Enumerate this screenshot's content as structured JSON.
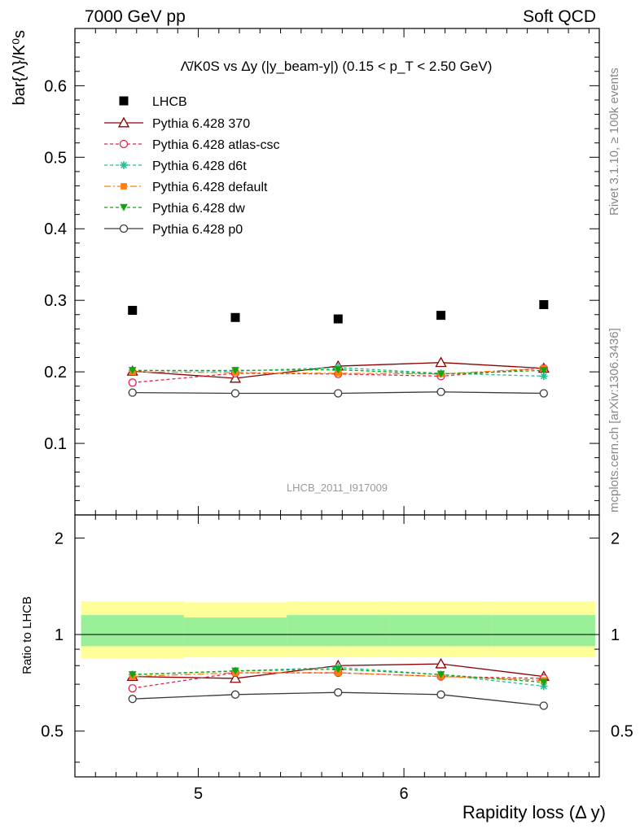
{
  "header": {
    "left": "7000 GeV pp",
    "right": "Soft QCD"
  },
  "side_text": {
    "top": "Rivet 3.1.10, ≥ 100k events",
    "bottom": "mcplots.cern.ch [arXiv:1306.3436]"
  },
  "chart_data": {
    "type": "scatter",
    "title": "Λ̄/K0S vs Δy (|y_beam-y|) (0.15 < p_T < 2.50 GeV)",
    "ylabel": "bar{Λ}/K⁰s",
    "xlabel": "Rapidity loss (Δ y)",
    "watermark": "LHCB_2011_I917009",
    "ratio_ylabel": "Ratio to LHCB",
    "xlim": [
      4.4,
      6.95
    ],
    "ylim": [
      0.0,
      0.68
    ],
    "ratio_ylim": [
      0.36,
      2.36
    ],
    "xticks": [
      5,
      6
    ],
    "yticks": [
      0.1,
      0.2,
      0.3,
      0.4,
      0.5,
      0.6
    ],
    "ratio_yticks": [
      0.5,
      1,
      2
    ],
    "x": [
      4.68,
      5.18,
      5.68,
      6.18,
      6.68
    ],
    "bin_edges": [
      4.43,
      4.93,
      5.43,
      5.93,
      6.43,
      6.93
    ],
    "data": {
      "name": "LHCB",
      "values": [
        0.286,
        0.276,
        0.274,
        0.279,
        0.294
      ]
    },
    "band_inner": {
      "lo": [
        0.92,
        0.92,
        0.92,
        0.92,
        0.92
      ],
      "hi": [
        1.15,
        1.13,
        1.15,
        1.15,
        1.15
      ]
    },
    "band_outer": {
      "lo": [
        0.84,
        0.85,
        0.85,
        0.85,
        0.85
      ],
      "hi": [
        1.27,
        1.26,
        1.27,
        1.27,
        1.27
      ]
    },
    "series": [
      {
        "name": "Pythia 6.428 370",
        "color": "#8b0000",
        "dash": "",
        "marker": "triangle-open",
        "values": [
          0.201,
          0.191,
          0.208,
          0.213,
          0.205
        ],
        "ratio": [
          0.74,
          0.73,
          0.8,
          0.81,
          0.74
        ]
      },
      {
        "name": "Pythia 6.428 atlas-csc",
        "color": "#e8234a",
        "dash": "4,3",
        "marker": "circle-open",
        "values": [
          0.185,
          0.198,
          0.197,
          0.194,
          0.205
        ],
        "ratio": [
          0.68,
          0.76,
          0.76,
          0.74,
          0.73
        ]
      },
      {
        "name": "Pythia 6.428 d6t",
        "color": "#1fbf96",
        "dash": "4,3",
        "marker": "star",
        "values": [
          0.202,
          0.201,
          0.206,
          0.198,
          0.194
        ],
        "ratio": [
          0.75,
          0.77,
          0.79,
          0.75,
          0.69
        ]
      },
      {
        "name": "Pythia 6.428 default",
        "color": "#ff7f0e",
        "dash": "8,3,2,3",
        "marker": "square",
        "values": [
          0.2,
          0.199,
          0.198,
          0.197,
          0.205
        ],
        "ratio": [
          0.74,
          0.76,
          0.76,
          0.74,
          0.72
        ]
      },
      {
        "name": "Pythia 6.428 dw",
        "color": "#11a611",
        "dash": "4,3",
        "marker": "triangle-down",
        "values": [
          0.202,
          0.202,
          0.203,
          0.197,
          0.202
        ],
        "ratio": [
          0.75,
          0.77,
          0.78,
          0.75,
          0.71
        ]
      },
      {
        "name": "Pythia 6.428 p0",
        "color": "#3a3a3a",
        "dash": "",
        "marker": "circle-open",
        "values": [
          0.171,
          0.17,
          0.17,
          0.172,
          0.17
        ],
        "ratio": [
          0.63,
          0.65,
          0.66,
          0.65,
          0.6
        ]
      }
    ]
  }
}
